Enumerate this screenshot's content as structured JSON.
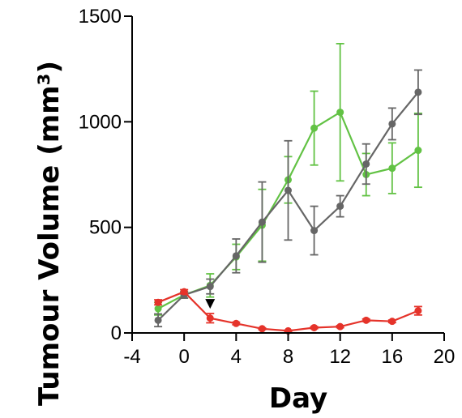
{
  "chart_data": {
    "type": "line",
    "xlabel": "Day",
    "ylabel": "Tumour Volume (mm³)",
    "xlim": [
      -4,
      20
    ],
    "ylim": [
      0,
      1500
    ],
    "xticks": [
      "-4",
      "0",
      "4",
      "8",
      "12",
      "16",
      "20"
    ],
    "yticks": [
      "0",
      "500",
      "1000",
      "1500"
    ],
    "grid": false,
    "legend": "none",
    "treatment_marker": {
      "x": 2,
      "y": 130,
      "shape": "down-triangle",
      "color": "#000000"
    },
    "series": [
      {
        "color": "#62c244",
        "x": [
          -2,
          0,
          2,
          4,
          6,
          8,
          10,
          12,
          14,
          16,
          18
        ],
        "y": [
          115,
          180,
          225,
          360,
          510,
          725,
          970,
          1045,
          750,
          780,
          865
        ],
        "err": [
          30,
          15,
          55,
          60,
          170,
          110,
          175,
          325,
          100,
          120,
          175
        ]
      },
      {
        "color": "#666666",
        "x": [
          -2,
          0,
          2,
          4,
          6,
          8,
          10,
          12,
          14,
          16,
          18
        ],
        "y": [
          60,
          180,
          220,
          365,
          525,
          675,
          485,
          600,
          800,
          990,
          1140
        ],
        "err": [
          30,
          15,
          35,
          80,
          190,
          235,
          115,
          50,
          95,
          75,
          105
        ]
      },
      {
        "color": "#e5332a",
        "x": [
          -2,
          0,
          2,
          4,
          6,
          8,
          10,
          12,
          14,
          16,
          18
        ],
        "y": [
          145,
          195,
          70,
          45,
          20,
          10,
          25,
          30,
          60,
          55,
          105
        ],
        "err": [
          12,
          10,
          22,
          6,
          4,
          3,
          5,
          5,
          6,
          6,
          20
        ]
      }
    ]
  }
}
